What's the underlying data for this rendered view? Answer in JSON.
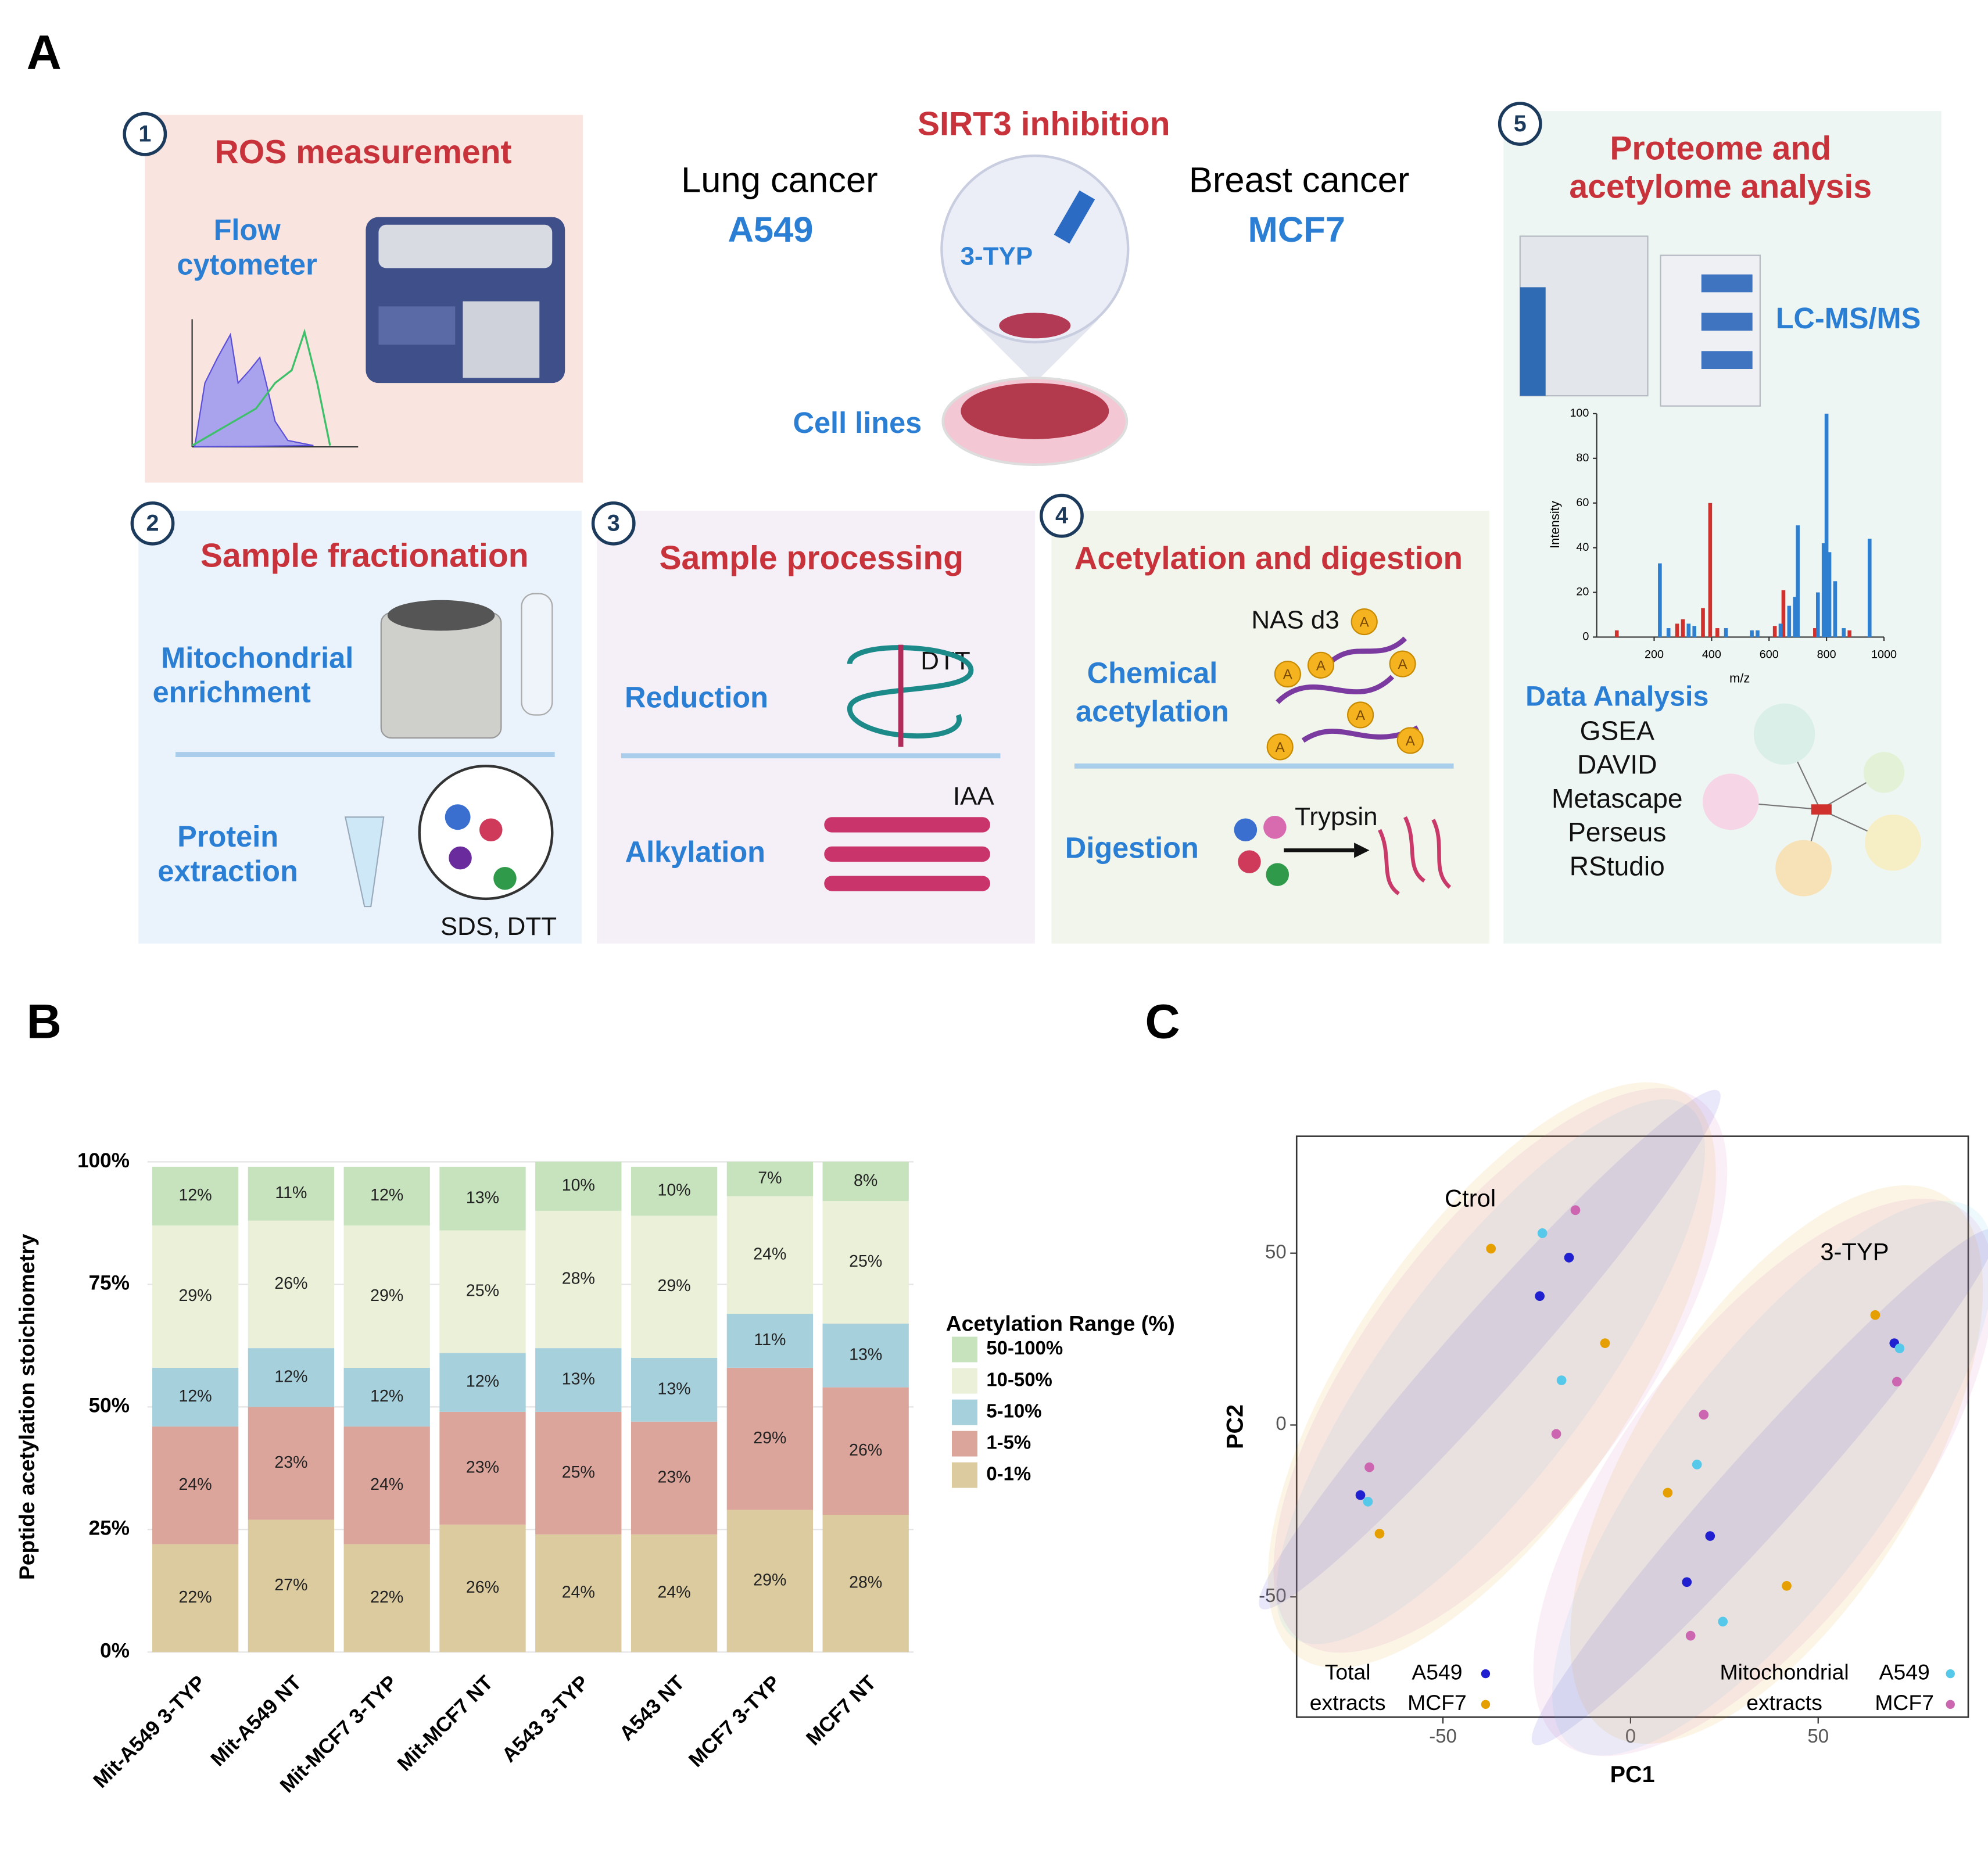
{
  "panel_labels": [
    "A",
    "B",
    "C"
  ],
  "center": {
    "title": "SIRT3 inhibition",
    "left_label": "Lung cancer",
    "left_cell": "A549",
    "right_label": "Breast cancer",
    "right_cell": "MCF7",
    "drug": "3-TYP",
    "cells": "Cell lines"
  },
  "steps": [
    {
      "number": "1",
      "title": "ROS measurement",
      "instrument": [
        "Flow",
        "cytometer"
      ]
    },
    {
      "number": "2",
      "title": "Sample fractionation",
      "top": [
        "Mitochondrial",
        "enrichment"
      ],
      "bottom": [
        "Protein",
        "extraction"
      ],
      "reagent": "SDS, DTT"
    },
    {
      "number": "3",
      "title": "Sample processing",
      "top": "Reduction",
      "top_reagent": "DTT",
      "bottom": "Alkylation",
      "bottom_reagent": "IAA"
    },
    {
      "number": "4",
      "title": "Acetylation and digestion",
      "top": [
        "Chemical",
        "acetylation"
      ],
      "top_reagent": "NAS d3",
      "acetyl_mark": "A",
      "bottom": "Digestion",
      "bottom_reagent": "Trypsin"
    },
    {
      "number": "5",
      "title": [
        "Proteome and",
        "acetylome analysis"
      ],
      "instrument": "LC-MS/MS",
      "analysis_title": "Data Analysis",
      "tools": [
        "GSEA",
        "DAVID",
        "Metascape",
        "Perseus",
        "RStudio"
      ]
    }
  ],
  "chart_data": [
    {
      "type": "bar",
      "stacked": true,
      "ylabel": "Peptide acetylation stoichiometry",
      "legend_title": "Acetylation Range (%)",
      "legend": "right",
      "grid": true,
      "categories": [
        "Mit-A549 3-TYP",
        "Mit-A549 NT",
        "Mit-MCF7 3-TYP",
        "Mit-MCF7 NT",
        "A543 3-TYP",
        "A543 NT",
        "MCF7 3-TYP",
        "MCF7 NT"
      ],
      "series": [
        {
          "name": "0-1%",
          "color": "#dccb9f",
          "values": [
            22,
            27,
            22,
            26,
            24,
            24,
            29,
            28
          ],
          "value_labels": [
            "22%",
            "27%",
            "22%",
            "26%",
            "24%",
            "24%",
            "29%",
            "28%"
          ]
        },
        {
          "name": "1-5%",
          "color": "#dca59b",
          "values": [
            24,
            23,
            24,
            23,
            25,
            23,
            29,
            26
          ],
          "value_labels": [
            "24%",
            "23%",
            "24%",
            "23%",
            "25%",
            "23%",
            "29%",
            "26%"
          ]
        },
        {
          "name": "5-10%",
          "color": "#a6d0dc",
          "values": [
            12,
            12,
            12,
            12,
            13,
            13,
            11,
            13
          ],
          "value_labels": [
            "12%",
            "12%",
            "12%",
            "12%",
            "13%",
            "13%",
            "11%",
            "13%"
          ]
        },
        {
          "name": "10-50%",
          "color": "#ebf0d9",
          "values": [
            29,
            26,
            29,
            25,
            28,
            29,
            24,
            25
          ],
          "value_labels": [
            "29%",
            "26%",
            "29%",
            "25%",
            "28%",
            "29%",
            "24%",
            "25%"
          ]
        },
        {
          "name": "50-100%",
          "color": "#c7e3bd",
          "values": [
            12,
            11,
            12,
            13,
            10,
            10,
            7,
            8
          ],
          "value_labels": [
            "12%",
            "11%",
            "12%",
            "13%",
            "10%",
            "10%",
            "7%",
            "8%"
          ]
        }
      ],
      "ylim": [
        0,
        100
      ],
      "yticks": [
        {
          "value": 0,
          "label": "0%"
        },
        {
          "value": 25,
          "label": "25%"
        },
        {
          "value": 50,
          "label": "50%"
        },
        {
          "value": 75,
          "label": "75%"
        },
        {
          "value": 100,
          "label": "100%"
        }
      ]
    },
    {
      "type": "scatter",
      "xlabel": "PC1",
      "ylabel": "PC2",
      "annotations": [
        "Ctrol",
        "3-TYP"
      ],
      "legend_titles": [
        [
          "Total",
          "extracts"
        ],
        [
          "Mitochondrial",
          "extracts"
        ]
      ],
      "xlim": [
        -89,
        90
      ],
      "ylim": [
        -85,
        84
      ],
      "xticks": [
        -50,
        0,
        50
      ],
      "yticks": [
        -50,
        0,
        50
      ],
      "series": [
        {
          "name": "A549",
          "color": "#2020d0",
          "x": [
            -16.4,
            -24.2,
            -72,
            70.3,
            21.2,
            15
          ],
          "values": [
            48.7,
            37.5,
            -20.4,
            23.8,
            -32.3,
            -45.7
          ]
        },
        {
          "name": "MCF7",
          "color": "#e69f00",
          "x": [
            -37.2,
            -6.8,
            -66.9,
            65.2,
            9.9,
            41.6
          ],
          "values": [
            51.3,
            23.8,
            -31.6,
            32,
            -19.7,
            -46.8
          ]
        },
        {
          "name": "A549",
          "color": "#56c8ea",
          "x": [
            -23.5,
            -18.4,
            -70,
            71.7,
            17.7,
            24.6
          ],
          "values": [
            55.8,
            13,
            -22.3,
            22.3,
            -11.5,
            -57.2
          ]
        },
        {
          "name": "MCF7",
          "color": "#cc66b0",
          "x": [
            -14.7,
            -19.8,
            -69.6,
            71,
            19.5,
            16
          ],
          "values": [
            62.5,
            -2.6,
            -12.3,
            12.6,
            3,
            -61.3
          ]
        }
      ]
    },
    {
      "type": "stem",
      "xlabel": "m/z",
      "ylabel": "Intensity",
      "xlim": [
        0,
        1000
      ],
      "ylim": [
        0,
        100
      ],
      "xticks": [
        200,
        400,
        600,
        800,
        1000
      ],
      "yticks": [
        0,
        20,
        40,
        60,
        80,
        100
      ],
      "series": [
        {
          "color": "#d0312d",
          "x": [
            70,
            280,
            300,
            370,
            395,
            420,
            620,
            650,
            760,
            880
          ],
          "values": [
            3,
            6,
            8,
            13,
            60,
            4,
            5,
            21,
            4,
            3
          ]
        },
        {
          "color": "#2f7fd0",
          "x": [
            220,
            250,
            320,
            340,
            450,
            540,
            560,
            640,
            670,
            690,
            700,
            770,
            790,
            800,
            810,
            830,
            860,
            950
          ],
          "values": [
            33,
            4,
            6,
            5,
            4,
            3,
            3,
            6,
            14,
            18,
            50,
            20,
            42,
            100,
            38,
            25,
            4,
            44
          ]
        }
      ]
    }
  ]
}
